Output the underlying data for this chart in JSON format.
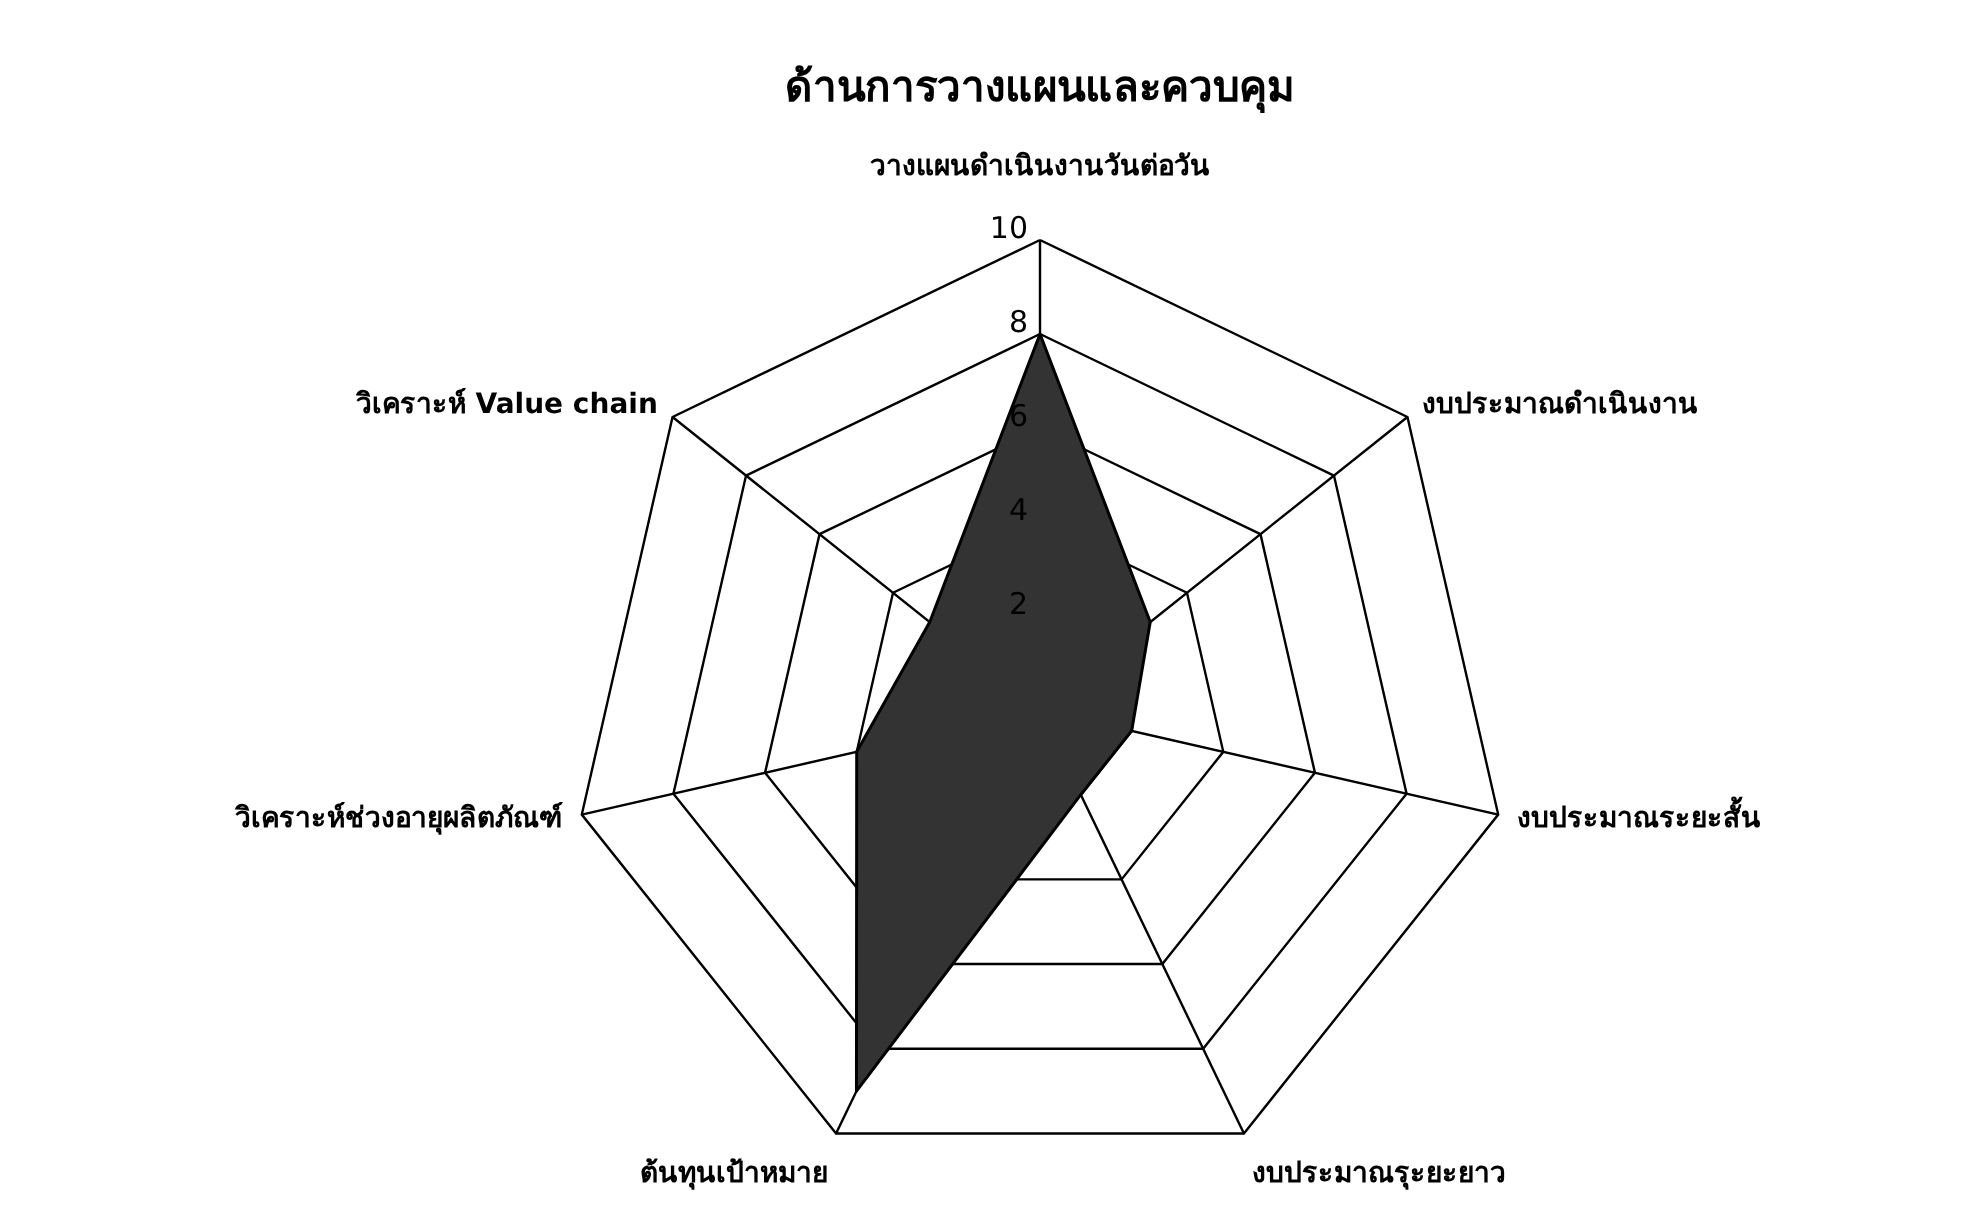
{
  "chart_data": {
    "type": "radar",
    "title": "ด้านการวางแผนและควบคุม",
    "categories": [
      "วางแผนดำเนินงานวันต่อวัน",
      "งบประมาณดำเนินงาน",
      "งบประมาณระยะสั้น",
      "งบประมาณรุะยะยาว",
      "ต้นทุนเป้าหมาย",
      "วิเคราะห์ช่วงอายุผลิตภัณฑ์",
      "วิเคราะห์ Value chain"
    ],
    "series": [
      {
        "color": "#333333",
        "values": [
          8,
          3,
          2,
          2,
          9,
          4,
          3
        ]
      }
    ],
    "ylim": [
      0,
      10
    ],
    "yticks": [
      2,
      4,
      6,
      8,
      10
    ],
    "grid": true
  }
}
